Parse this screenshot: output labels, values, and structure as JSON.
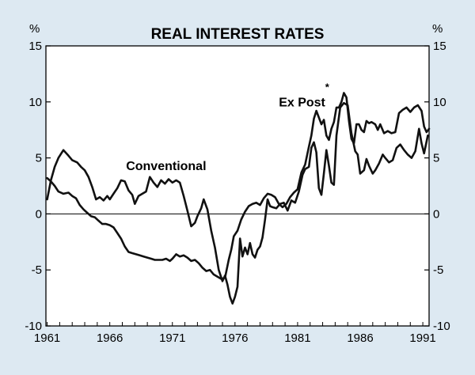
{
  "chart_data": {
    "type": "line",
    "title": "REAL INTEREST RATES",
    "unit_left": "%",
    "unit_right": "%",
    "xlabel": "",
    "ylabel": "",
    "xlim": [
      1960.9,
      1991.5
    ],
    "ylim": [
      -10,
      15
    ],
    "x_ticks": [
      1961,
      1966,
      1971,
      1976,
      1981,
      1986,
      1991
    ],
    "x_tick_labels": [
      "1961",
      "1966",
      "1971",
      "1976",
      "1981",
      "1986",
      "1991"
    ],
    "y_ticks": [
      -10,
      -5,
      0,
      5,
      10,
      15
    ],
    "y_tick_labels": [
      "-10",
      "-5",
      "0",
      "5",
      "10",
      "15"
    ],
    "annotations": [
      {
        "text": "Conventional",
        "x": 1967.3,
        "y": 3.9
      },
      {
        "text": "Ex Post",
        "x": 1979.5,
        "y": 9.6
      },
      {
        "text": "*",
        "x": 1983.2,
        "y": 11.0
      }
    ],
    "series": [
      {
        "name": "Conventional",
        "points": [
          [
            1961.0,
            1.3
          ],
          [
            1961.3,
            3.0
          ],
          [
            1961.6,
            4.2
          ],
          [
            1961.9,
            5.0
          ],
          [
            1962.3,
            5.7
          ],
          [
            1962.7,
            5.2
          ],
          [
            1963.0,
            4.8
          ],
          [
            1963.4,
            4.6
          ],
          [
            1963.7,
            4.2
          ],
          [
            1964.0,
            3.9
          ],
          [
            1964.3,
            3.3
          ],
          [
            1964.6,
            2.4
          ],
          [
            1964.9,
            1.3
          ],
          [
            1965.2,
            1.5
          ],
          [
            1965.5,
            1.2
          ],
          [
            1965.8,
            1.6
          ],
          [
            1966.0,
            1.3
          ],
          [
            1966.3,
            1.8
          ],
          [
            1966.6,
            2.3
          ],
          [
            1966.9,
            3.0
          ],
          [
            1967.2,
            2.9
          ],
          [
            1967.5,
            2.1
          ],
          [
            1967.8,
            1.7
          ],
          [
            1968.0,
            0.9
          ],
          [
            1968.3,
            1.6
          ],
          [
            1968.6,
            1.8
          ],
          [
            1968.9,
            2.0
          ],
          [
            1969.2,
            3.3
          ],
          [
            1969.5,
            2.8
          ],
          [
            1969.8,
            2.4
          ],
          [
            1970.1,
            3.0
          ],
          [
            1970.4,
            2.7
          ],
          [
            1970.7,
            3.1
          ],
          [
            1971.0,
            2.8
          ],
          [
            1971.3,
            3.0
          ],
          [
            1971.6,
            2.8
          ],
          [
            1971.9,
            1.6
          ],
          [
            1972.2,
            0.3
          ],
          [
            1972.5,
            -1.1
          ],
          [
            1972.8,
            -0.8
          ],
          [
            1973.0,
            -0.2
          ],
          [
            1973.3,
            0.5
          ],
          [
            1973.5,
            1.3
          ],
          [
            1973.8,
            0.4
          ],
          [
            1974.1,
            -1.5
          ],
          [
            1974.4,
            -3.0
          ],
          [
            1974.7,
            -5.0
          ],
          [
            1975.0,
            -6.0
          ],
          [
            1975.2,
            -5.5
          ],
          [
            1975.4,
            -6.3
          ],
          [
            1975.6,
            -7.4
          ],
          [
            1975.8,
            -8.0
          ],
          [
            1976.0,
            -7.4
          ],
          [
            1976.2,
            -6.5
          ],
          [
            1976.4,
            -2.2
          ],
          [
            1976.6,
            -3.8
          ],
          [
            1976.8,
            -3.0
          ],
          [
            1977.0,
            -3.6
          ],
          [
            1977.2,
            -2.6
          ],
          [
            1977.4,
            -3.6
          ],
          [
            1977.6,
            -3.9
          ],
          [
            1977.8,
            -3.2
          ],
          [
            1978.0,
            -2.9
          ],
          [
            1978.2,
            -2.1
          ],
          [
            1978.4,
            -0.5
          ],
          [
            1978.6,
            1.3
          ],
          [
            1978.8,
            0.7
          ],
          [
            1979.0,
            0.6
          ],
          [
            1979.3,
            0.5
          ],
          [
            1979.6,
            0.9
          ],
          [
            1979.9,
            1.0
          ],
          [
            1980.2,
            0.3
          ],
          [
            1980.5,
            1.2
          ],
          [
            1980.8,
            1.0
          ],
          [
            1981.1,
            2.0
          ],
          [
            1981.4,
            3.5
          ],
          [
            1981.6,
            4.0
          ],
          [
            1981.9,
            4.2
          ],
          [
            1982.1,
            5.9
          ],
          [
            1982.3,
            6.4
          ],
          [
            1982.5,
            5.5
          ],
          [
            1982.7,
            2.3
          ],
          [
            1982.9,
            1.7
          ],
          [
            1983.1,
            3.6
          ],
          [
            1983.3,
            5.7
          ],
          [
            1983.5,
            4.3
          ],
          [
            1983.7,
            2.8
          ],
          [
            1983.9,
            2.6
          ],
          [
            1984.1,
            7.0
          ],
          [
            1984.4,
            9.5
          ],
          [
            1984.7,
            9.9
          ],
          [
            1985.0,
            9.7
          ],
          [
            1985.3,
            7.2
          ],
          [
            1985.6,
            5.6
          ],
          [
            1985.8,
            5.3
          ],
          [
            1986.0,
            3.6
          ],
          [
            1986.3,
            3.9
          ],
          [
            1986.5,
            4.9
          ],
          [
            1986.7,
            4.3
          ],
          [
            1987.0,
            3.6
          ],
          [
            1987.2,
            3.9
          ],
          [
            1987.5,
            4.5
          ],
          [
            1987.8,
            5.3
          ],
          [
            1988.0,
            5.0
          ],
          [
            1988.3,
            4.6
          ],
          [
            1988.6,
            4.8
          ],
          [
            1988.9,
            5.9
          ],
          [
            1989.2,
            6.2
          ],
          [
            1989.5,
            5.7
          ],
          [
            1989.8,
            5.3
          ],
          [
            1990.1,
            5.0
          ],
          [
            1990.4,
            5.6
          ],
          [
            1990.7,
            7.6
          ],
          [
            1990.9,
            6.3
          ],
          [
            1991.1,
            5.4
          ],
          [
            1991.4,
            7.0
          ]
        ]
      },
      {
        "name": "Ex Post",
        "points": [
          [
            1961.0,
            3.2
          ],
          [
            1961.3,
            2.9
          ],
          [
            1961.6,
            2.5
          ],
          [
            1961.9,
            2.0
          ],
          [
            1962.3,
            1.8
          ],
          [
            1962.7,
            1.9
          ],
          [
            1963.0,
            1.6
          ],
          [
            1963.3,
            1.4
          ],
          [
            1963.6,
            0.8
          ],
          [
            1963.9,
            0.4
          ],
          [
            1964.2,
            0.1
          ],
          [
            1964.5,
            -0.2
          ],
          [
            1964.8,
            -0.3
          ],
          [
            1965.1,
            -0.6
          ],
          [
            1965.4,
            -0.9
          ],
          [
            1965.7,
            -0.9
          ],
          [
            1966.0,
            -1.0
          ],
          [
            1966.3,
            -1.2
          ],
          [
            1966.6,
            -1.7
          ],
          [
            1966.9,
            -2.2
          ],
          [
            1967.2,
            -2.9
          ],
          [
            1967.5,
            -3.4
          ],
          [
            1967.8,
            -3.5
          ],
          [
            1968.1,
            -3.6
          ],
          [
            1968.4,
            -3.7
          ],
          [
            1968.7,
            -3.8
          ],
          [
            1969.0,
            -3.9
          ],
          [
            1969.3,
            -4.0
          ],
          [
            1969.6,
            -4.1
          ],
          [
            1969.9,
            -4.1
          ],
          [
            1970.2,
            -4.1
          ],
          [
            1970.5,
            -4.0
          ],
          [
            1970.8,
            -4.2
          ],
          [
            1971.0,
            -4.0
          ],
          [
            1971.3,
            -3.6
          ],
          [
            1971.6,
            -3.8
          ],
          [
            1971.9,
            -3.7
          ],
          [
            1972.2,
            -3.9
          ],
          [
            1972.5,
            -4.2
          ],
          [
            1972.8,
            -4.1
          ],
          [
            1973.1,
            -4.4
          ],
          [
            1973.4,
            -4.8
          ],
          [
            1973.7,
            -5.1
          ],
          [
            1974.0,
            -5.0
          ],
          [
            1974.3,
            -5.4
          ],
          [
            1974.6,
            -5.6
          ],
          [
            1974.9,
            -5.8
          ],
          [
            1975.2,
            -5.7
          ],
          [
            1975.5,
            -4.1
          ],
          [
            1975.7,
            -3.2
          ],
          [
            1975.9,
            -2.0
          ],
          [
            1976.2,
            -1.5
          ],
          [
            1976.5,
            -0.5
          ],
          [
            1976.8,
            0.2
          ],
          [
            1977.1,
            0.7
          ],
          [
            1977.4,
            0.9
          ],
          [
            1977.7,
            1.0
          ],
          [
            1978.0,
            0.8
          ],
          [
            1978.3,
            1.4
          ],
          [
            1978.6,
            1.8
          ],
          [
            1978.9,
            1.7
          ],
          [
            1979.2,
            1.5
          ],
          [
            1979.5,
            0.9
          ],
          [
            1979.8,
            0.6
          ],
          [
            1980.1,
            0.9
          ],
          [
            1980.4,
            1.5
          ],
          [
            1980.7,
            1.9
          ],
          [
            1981.0,
            2.2
          ],
          [
            1981.3,
            3.7
          ],
          [
            1981.6,
            4.4
          ],
          [
            1981.9,
            6.0
          ],
          [
            1982.1,
            7.0
          ],
          [
            1982.3,
            8.5
          ],
          [
            1982.5,
            9.2
          ],
          [
            1982.7,
            8.6
          ],
          [
            1982.9,
            8.0
          ],
          [
            1983.1,
            8.4
          ],
          [
            1983.3,
            7.0
          ],
          [
            1983.5,
            6.6
          ],
          [
            1983.7,
            7.6
          ],
          [
            1983.9,
            8.2
          ],
          [
            1984.1,
            9.5
          ],
          [
            1984.3,
            9.5
          ],
          [
            1984.5,
            10.0
          ],
          [
            1984.7,
            10.8
          ],
          [
            1984.9,
            10.4
          ],
          [
            1985.1,
            8.3
          ],
          [
            1985.3,
            6.7
          ],
          [
            1985.5,
            6.3
          ],
          [
            1985.7,
            8.0
          ],
          [
            1985.9,
            8.0
          ],
          [
            1986.1,
            7.5
          ],
          [
            1986.3,
            7.3
          ],
          [
            1986.5,
            8.3
          ],
          [
            1986.7,
            8.1
          ],
          [
            1986.9,
            8.2
          ],
          [
            1987.2,
            8.0
          ],
          [
            1987.4,
            7.5
          ],
          [
            1987.6,
            8.0
          ],
          [
            1987.9,
            7.2
          ],
          [
            1988.2,
            7.4
          ],
          [
            1988.5,
            7.2
          ],
          [
            1988.8,
            7.3
          ],
          [
            1989.1,
            9.0
          ],
          [
            1989.4,
            9.3
          ],
          [
            1989.7,
            9.5
          ],
          [
            1990.0,
            9.1
          ],
          [
            1990.3,
            9.5
          ],
          [
            1990.6,
            9.7
          ],
          [
            1990.9,
            9.2
          ],
          [
            1991.1,
            7.8
          ],
          [
            1991.3,
            7.3
          ],
          [
            1991.5,
            7.6
          ]
        ]
      }
    ]
  }
}
